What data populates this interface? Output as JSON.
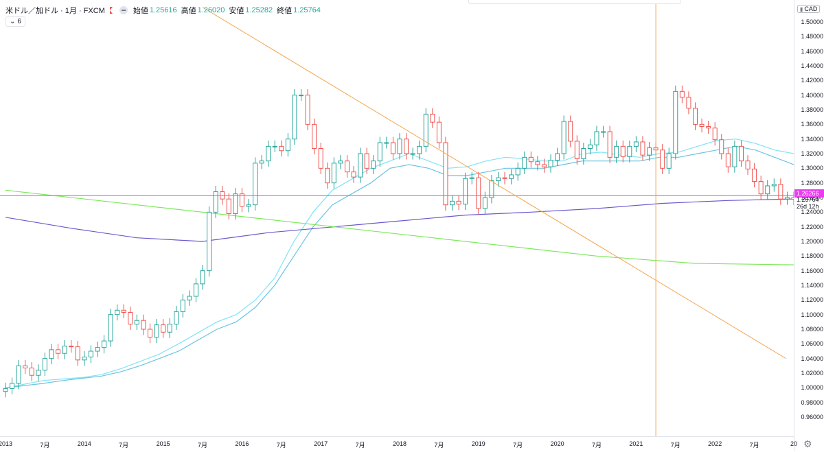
{
  "legend": {
    "symbol": "米ドル／加ドル · 1月 · FXCM",
    "open_label": "始値",
    "open": "1.25616",
    "high_label": "高値",
    "high": "1.26020",
    "low_label": "安値",
    "low": "1.25282",
    "close_label": "終値",
    "close": "1.25764"
  },
  "indicators_button": {
    "label": "6"
  },
  "currency_badge": "CAD",
  "price_badges": {
    "horizontal_line": "1.26266",
    "last": "1.25764",
    "countdown": "26d 12h"
  },
  "icons": {
    "collapse": "chevron-icon",
    "visibility": "eye-icon",
    "flag": "flag-icon",
    "settings": "gear-icon"
  },
  "colors": {
    "up": "#26a69a",
    "down": "#ef5350",
    "ma_fast": "#7fe3f5",
    "ma_mid": "#69c3e0",
    "ma_long": "#6a5acd",
    "ma_xlong": "#7ce85a",
    "hline": "#ea3df0",
    "trend": "#f5a44f"
  },
  "chart_data": {
    "type": "candlestick",
    "y_axis": {
      "ylim": [
        0.94,
        1.52
      ],
      "ticks": [
        "1.50000",
        "1.48000",
        "1.46000",
        "1.44000",
        "1.42000",
        "1.40000",
        "1.38000",
        "1.36000",
        "1.34000",
        "1.32000",
        "1.30000",
        "1.28000",
        "1.26000",
        "1.24000",
        "1.22000",
        "1.20000",
        "1.18000",
        "1.16000",
        "1.14000",
        "1.12000",
        "1.10000",
        "1.08000",
        "1.06000",
        "1.04000",
        "1.02000",
        "1.00000",
        "0.98000",
        "0.96000"
      ]
    },
    "x_axis": {
      "labels": [
        "2013",
        "7月",
        "2014",
        "7月",
        "2015",
        "7月",
        "2016",
        "7月",
        "2017",
        "7月",
        "2018",
        "7月",
        "2019",
        "7月",
        "2020",
        "7月",
        "2021",
        "7月",
        "2022",
        "7月",
        "20"
      ]
    },
    "candles_close": [
      0.999,
      1.006,
      1.03,
      1.027,
      1.017,
      1.024,
      1.04,
      1.052,
      1.047,
      1.057,
      1.056,
      1.038,
      1.042,
      1.05,
      1.055,
      1.064,
      1.1,
      1.106,
      1.103,
      1.087,
      1.092,
      1.08,
      1.069,
      1.086,
      1.076,
      1.087,
      1.104,
      1.12,
      1.125,
      1.142,
      1.16,
      1.24,
      1.268,
      1.258,
      1.238,
      1.265,
      1.248,
      1.25,
      1.307,
      1.31,
      1.33,
      1.33,
      1.324,
      1.34,
      1.4,
      1.4,
      1.36,
      1.327,
      1.3,
      1.28,
      1.307,
      1.31,
      1.295,
      1.288,
      1.32,
      1.3,
      1.31,
      1.335,
      1.335,
      1.32,
      1.34,
      1.32,
      1.32,
      1.33,
      1.374,
      1.363,
      1.335,
      1.25,
      1.255,
      1.251,
      1.286,
      1.287,
      1.245,
      1.26,
      1.283,
      1.287,
      1.286,
      1.291,
      1.3,
      1.315,
      1.309,
      1.305,
      1.302,
      1.311,
      1.32,
      1.364,
      1.337,
      1.313,
      1.327,
      1.332,
      1.35,
      1.35,
      1.315,
      1.33,
      1.316,
      1.33,
      1.336,
      1.318,
      1.328,
      1.325,
      1.3,
      1.32,
      1.405,
      1.397,
      1.382,
      1.36,
      1.357,
      1.355,
      1.339,
      1.32,
      1.302,
      1.33,
      1.31,
      1.299,
      1.282,
      1.265,
      1.276,
      1.278,
      1.258,
      1.26,
      1.2576
    ],
    "moving_averages": [
      {
        "values": [
          1.0,
          1.005,
          1.01,
          1.012,
          1.014,
          1.018,
          1.026,
          1.036,
          1.046,
          1.06,
          1.075,
          1.09,
          1.1,
          1.12,
          1.15,
          1.2,
          1.24,
          1.27,
          1.285,
          1.3,
          1.31,
          1.32,
          1.31,
          1.3,
          1.302,
          1.31,
          1.315,
          1.313,
          1.31,
          1.31,
          1.32,
          1.322,
          1.318,
          1.315,
          1.32,
          1.322,
          1.33,
          1.338,
          1.34,
          1.334,
          1.325,
          1.32
        ]
      },
      {
        "values": [
          1.0,
          1.003,
          1.006,
          1.01,
          1.013,
          1.016,
          1.022,
          1.03,
          1.04,
          1.05,
          1.065,
          1.08,
          1.09,
          1.11,
          1.14,
          1.18,
          1.22,
          1.25,
          1.265,
          1.28,
          1.3,
          1.305,
          1.3,
          1.29,
          1.29,
          1.295,
          1.3,
          1.3,
          1.3,
          1.305,
          1.31,
          1.31,
          1.31,
          1.31,
          1.315,
          1.315,
          1.32,
          1.325,
          1.33,
          1.325,
          1.315,
          1.305
        ]
      },
      {
        "values": [
          1.233,
          1.218,
          1.205,
          1.2,
          1.212,
          1.22,
          1.228,
          1.236,
          1.24,
          1.245,
          1.252,
          1.256,
          1.258
        ]
      },
      {
        "values": [
          1.27,
          1.255,
          1.24,
          1.225,
          1.21,
          1.195,
          1.18,
          1.17,
          1.168
        ]
      }
    ],
    "horizontal_line": 1.26266,
    "trend_line": [
      {
        "x": 2015.5,
        "y": 1.52
      },
      {
        "x": 2022.9,
        "y": 1.04
      }
    ],
    "vertical_line_x": 2021.25,
    "grid": false
  }
}
